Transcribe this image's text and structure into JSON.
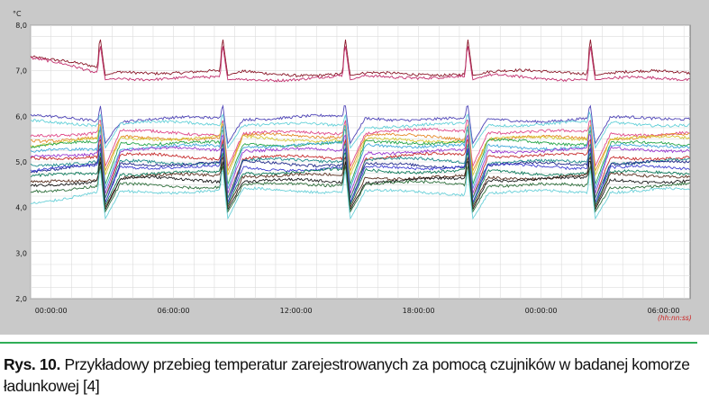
{
  "figure": {
    "caption_label": "Rys. 10.",
    "caption_text": "Przykładowy przebieg temperatur zarejestrowanych za pomocą czujników w badanej komorze ładunkowej [4]"
  },
  "chart_data": {
    "type": "line",
    "y_unit": "°C",
    "x_unit": "(hh:nn:ss)",
    "ylim": [
      2.0,
      8.0
    ],
    "y_ticks": [
      "8,0",
      "7,0",
      "6,0",
      "5,0",
      "4,0",
      "3,0",
      "2,0"
    ],
    "y_tick_values": [
      8.0,
      7.0,
      6.0,
      5.0,
      4.0,
      3.0,
      2.0
    ],
    "x_ticks": [
      "00:00:00",
      "06:00:00",
      "12:00:00",
      "18:00:00",
      "00:00:00",
      "06:00:00"
    ],
    "x_tick_hours": [
      0,
      6,
      12,
      18,
      24,
      30
    ],
    "xlim_hours": [
      -1,
      31.3
    ],
    "grid": true,
    "spikes_at_hours": [
      2.4,
      8.4,
      14.4,
      20.4,
      26.4
    ],
    "series": [
      {
        "color": "#8b1a2b",
        "start": 7.35,
        "level": 6.95,
        "spike": 7.75,
        "dip": 6.9
      },
      {
        "color": "#c2306e",
        "start": 7.25,
        "level": 6.85,
        "spike": 7.6,
        "dip": 6.8
      },
      {
        "color": "#5046b8",
        "start": 6.0,
        "level": 5.95,
        "spike": 6.3,
        "dip": 5.4
      },
      {
        "color": "#63d0d8",
        "start": 5.9,
        "level": 5.82,
        "spike": 6.1,
        "dip": 5.3
      },
      {
        "color": "#e04a8a",
        "start": 5.55,
        "level": 5.65,
        "spike": 6.0,
        "dip": 4.9
      },
      {
        "color": "#e58a2a",
        "start": 5.5,
        "level": 5.55,
        "spike": 5.9,
        "dip": 4.8
      },
      {
        "color": "#d8c83a",
        "start": 5.4,
        "level": 5.5,
        "spike": 5.9,
        "dip": 4.7
      },
      {
        "color": "#27a64a",
        "start": 5.3,
        "level": 5.42,
        "spike": 5.8,
        "dip": 4.5
      },
      {
        "color": "#3fa9d8",
        "start": 5.2,
        "level": 5.35,
        "spike": 5.9,
        "dip": 4.4
      },
      {
        "color": "#9a3ad0",
        "start": 5.1,
        "level": 5.25,
        "spike": 5.7,
        "dip": 4.3
      },
      {
        "color": "#c62a2a",
        "start": 5.05,
        "level": 5.12,
        "spike": 5.6,
        "dip": 4.2
      },
      {
        "color": "#1f8a8a",
        "start": 4.95,
        "level": 5.02,
        "spike": 5.5,
        "dip": 4.2
      },
      {
        "color": "#222b8c",
        "start": 4.85,
        "level": 4.95,
        "spike": 5.4,
        "dip": 4.1
      },
      {
        "color": "#3f3fd0",
        "start": 4.8,
        "level": 4.88,
        "spike": 5.4,
        "dip": 4.1
      },
      {
        "color": "#0c7a5a",
        "start": 4.65,
        "level": 4.78,
        "spike": 5.3,
        "dip": 4.05
      },
      {
        "color": "#5a3020",
        "start": 4.55,
        "level": 4.68,
        "spike": 5.2,
        "dip": 4.0
      },
      {
        "color": "#1a1a1a",
        "start": 4.45,
        "level": 4.6,
        "spike": 5.1,
        "dip": 3.95
      },
      {
        "color": "#2d6e3a",
        "start": 4.35,
        "level": 4.5,
        "spike": 5.0,
        "dip": 3.9
      },
      {
        "color": "#6ad0d8",
        "start": 4.15,
        "level": 4.35,
        "spike": 4.9,
        "dip": 3.75
      }
    ]
  }
}
